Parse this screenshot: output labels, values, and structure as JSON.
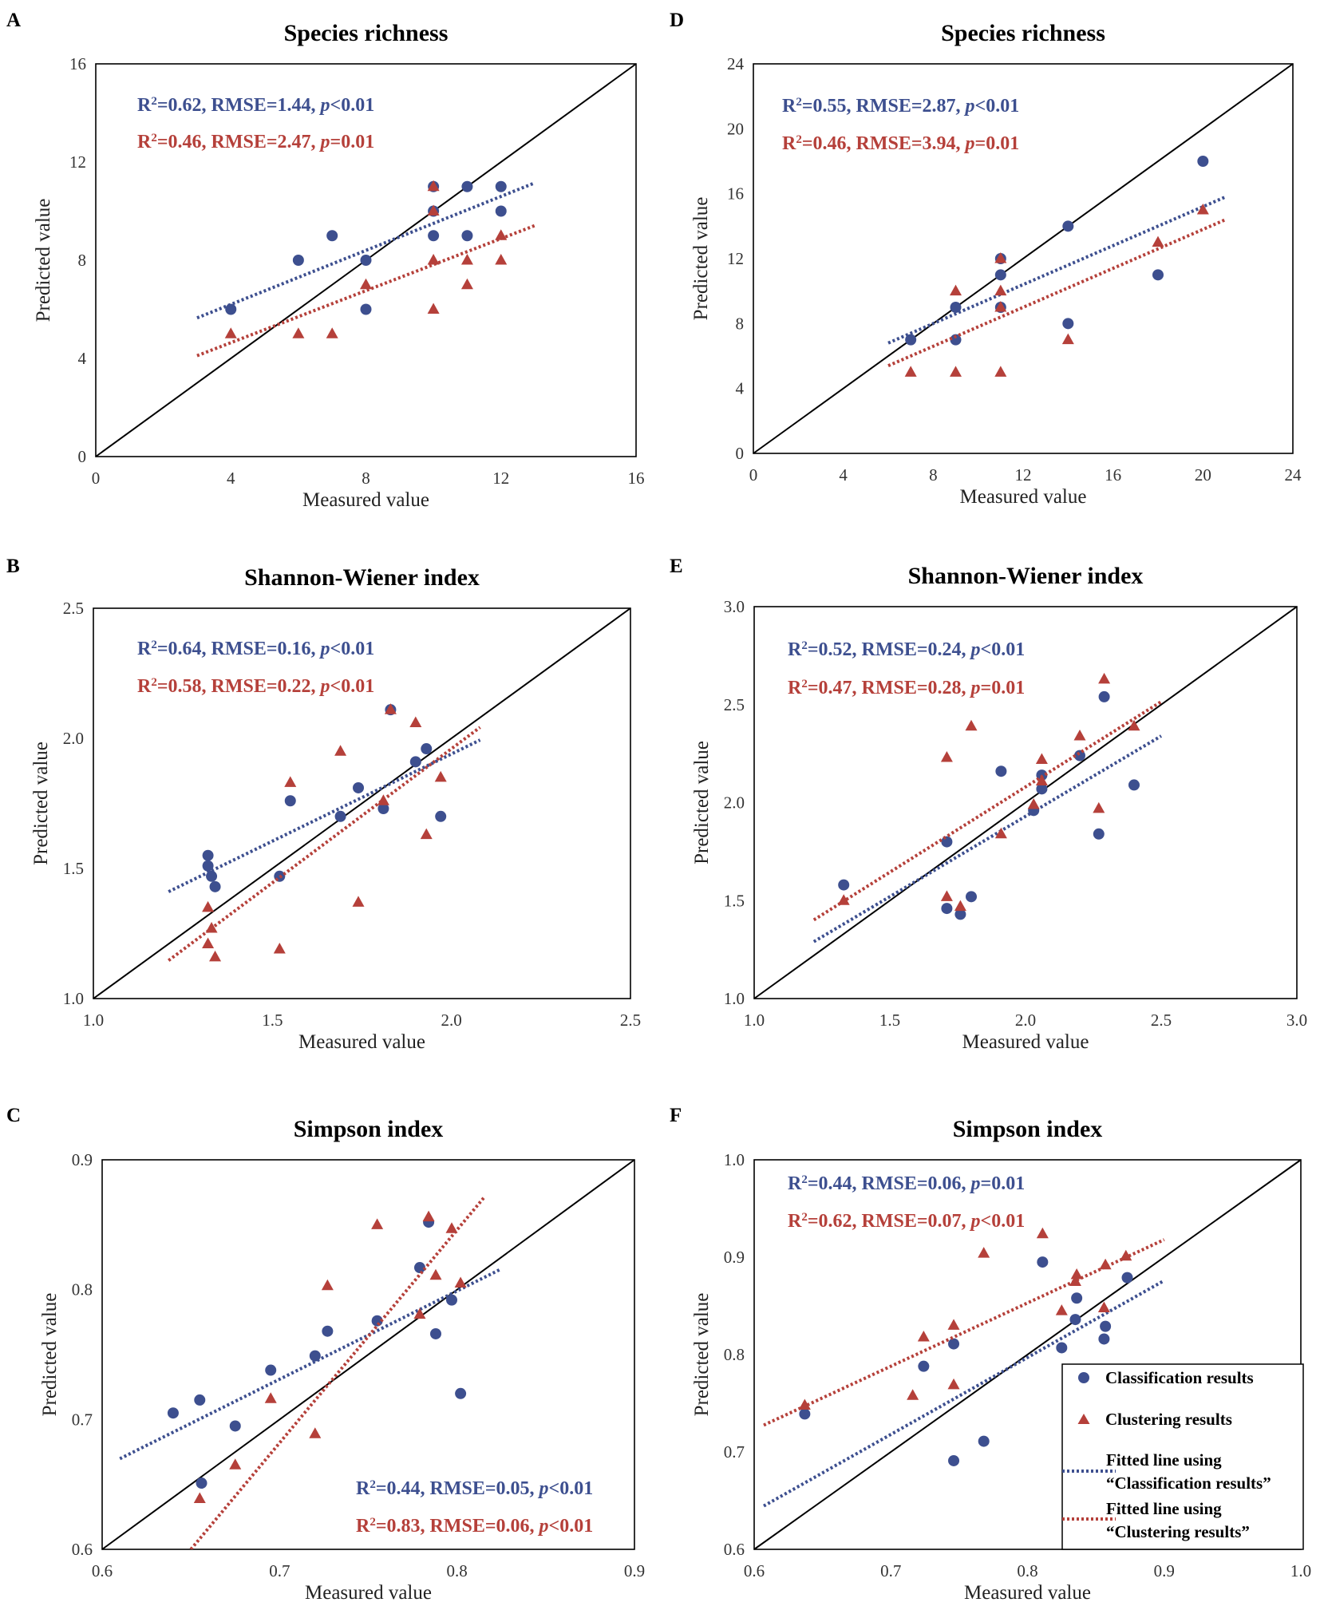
{
  "colors": {
    "classification": "#3d4f8f",
    "clustering": "#b5403a",
    "axis": "#000000"
  },
  "axis_labels": {
    "x": "Measured value",
    "y": "Predicted value"
  },
  "legend": {
    "classification": "Classification results",
    "clustering": "Clustering results",
    "fit_class_line1": "Fitted line using",
    "fit_class_line2": "“Classification results”",
    "fit_clust_line1": "Fitted line using",
    "fit_clust_line2": "“Clustering  results”"
  },
  "chart_data": [
    {
      "panel": "A",
      "type": "scatter",
      "title": "Species richness",
      "xlabel": "Measured value",
      "ylabel": "Predicted value",
      "xlim": [
        0,
        16
      ],
      "ylim": [
        0,
        16
      ],
      "decimals": 0,
      "xticks": [
        0,
        4,
        8,
        12,
        16
      ],
      "yticks": [
        0,
        4,
        8,
        12,
        16
      ],
      "series": [
        {
          "name": "Classification results",
          "marker": "circle",
          "x": [
            4,
            6,
            7,
            8,
            8,
            10,
            10,
            10,
            11,
            11,
            12,
            12
          ],
          "y": [
            6,
            8,
            9,
            8,
            6,
            11,
            10,
            9,
            11,
            9,
            11,
            10
          ],
          "fit": {
            "x0": 3,
            "x1": 13,
            "slope": 0.55,
            "intercept": 4.0
          }
        },
        {
          "name": "Clustering results",
          "marker": "triangle",
          "x": [
            4,
            6,
            7,
            8,
            10,
            10,
            10,
            10,
            11,
            11,
            12,
            12
          ],
          "y": [
            5,
            5,
            5,
            7,
            11,
            10,
            8,
            6,
            8,
            7,
            9,
            8
          ],
          "fit": {
            "x0": 3,
            "x1": 13,
            "slope": 0.53,
            "intercept": 2.52
          }
        }
      ],
      "stats": [
        {
          "r2": "0.62",
          "rmse": "1.44",
          "p_op": "<",
          "p": "0.01"
        },
        {
          "r2": "0.46",
          "rmse": "2.47",
          "p_op": "=",
          "p": "0.01"
        }
      ]
    },
    {
      "panel": "B",
      "type": "scatter",
      "title": "Shannon-Wiener index",
      "xlabel": "Measured value",
      "ylabel": "Predicted value",
      "xlim": [
        1.0,
        2.5
      ],
      "ylim": [
        1.0,
        2.5
      ],
      "decimals": 1,
      "xticks": [
        1.0,
        1.5,
        2.0,
        2.5
      ],
      "yticks": [
        1.0,
        1.5,
        2.0,
        2.5
      ],
      "series": [
        {
          "name": "Classification results",
          "marker": "circle",
          "x": [
            1.32,
            1.32,
            1.33,
            1.34,
            1.52,
            1.55,
            1.69,
            1.74,
            1.81,
            1.83,
            1.9,
            1.93,
            1.97
          ],
          "y": [
            1.55,
            1.51,
            1.47,
            1.43,
            1.47,
            1.76,
            1.7,
            1.81,
            1.73,
            2.11,
            1.91,
            1.96,
            1.7
          ],
          "fit": {
            "x0": 1.21,
            "x1": 2.08,
            "slope": 0.67,
            "intercept": 0.6
          }
        },
        {
          "name": "Clustering results",
          "marker": "triangle",
          "x": [
            1.32,
            1.32,
            1.33,
            1.34,
            1.52,
            1.55,
            1.69,
            1.74,
            1.81,
            1.83,
            1.9,
            1.93,
            1.97
          ],
          "y": [
            1.35,
            1.21,
            1.27,
            1.16,
            1.19,
            1.83,
            1.95,
            1.37,
            1.76,
            2.11,
            2.06,
            1.63,
            1.85
          ],
          "fit": {
            "x0": 1.21,
            "x1": 2.08,
            "slope": 1.03,
            "intercept": -0.1
          }
        }
      ],
      "stats": [
        {
          "r2": "0.64",
          "rmse": "0.16",
          "p_op": "<",
          "p": "0.01"
        },
        {
          "r2": "0.58",
          "rmse": "0.22",
          "p_op": "<",
          "p": "0.01"
        }
      ]
    },
    {
      "panel": "C",
      "type": "scatter",
      "title": "Simpson index",
      "xlabel": "Measured value",
      "ylabel": "Predicted value",
      "xlim": [
        0.6,
        0.9
      ],
      "ylim": [
        0.6,
        0.9
      ],
      "decimals": 1,
      "xticks": [
        0.6,
        0.7,
        0.8,
        0.9
      ],
      "yticks": [
        0.6,
        0.7,
        0.8,
        0.9
      ],
      "series": [
        {
          "name": "Classification results",
          "marker": "circle",
          "x": [
            0.64,
            0.655,
            0.656,
            0.675,
            0.695,
            0.72,
            0.727,
            0.755,
            0.779,
            0.784,
            0.788,
            0.797,
            0.802
          ],
          "y": [
            0.705,
            0.715,
            0.651,
            0.695,
            0.738,
            0.749,
            0.768,
            0.776,
            0.817,
            0.852,
            0.766,
            0.792,
            0.72
          ],
          "fit": {
            "x0": 0.61,
            "x1": 0.825,
            "slope": 0.68,
            "intercept": 0.255
          }
        },
        {
          "name": "Clustering results",
          "marker": "triangle",
          "x": [
            0.655,
            0.675,
            0.695,
            0.72,
            0.727,
            0.755,
            0.779,
            0.784,
            0.788,
            0.797,
            0.802
          ],
          "y": [
            0.639,
            0.665,
            0.716,
            0.689,
            0.803,
            0.85,
            0.781,
            0.856,
            0.811,
            0.847,
            0.805
          ],
          "fit": {
            "x0": 0.65,
            "x1": 0.815,
            "slope": 1.64,
            "intercept": -0.466
          }
        }
      ],
      "stats": [
        {
          "r2": "0.44",
          "rmse": "0.05",
          "p_op": "<",
          "p": "0.01"
        },
        {
          "r2": "0.83",
          "rmse": "0.06",
          "p_op": "<",
          "p": "0.01"
        }
      ]
    },
    {
      "panel": "D",
      "type": "scatter",
      "title": "Species richness",
      "xlabel": "Measured value",
      "ylabel": "Predicted value",
      "xlim": [
        0,
        24
      ],
      "ylim": [
        0,
        24
      ],
      "decimals": 0,
      "xticks": [
        0,
        4,
        8,
        12,
        16,
        20,
        24
      ],
      "yticks": [
        0,
        4,
        8,
        12,
        16,
        20,
        24
      ],
      "series": [
        {
          "name": "Classification results",
          "marker": "circle",
          "x": [
            7,
            9,
            9,
            11,
            11,
            11,
            14,
            14,
            18,
            20
          ],
          "y": [
            7,
            9,
            7,
            12,
            11,
            9,
            14,
            8,
            11,
            18
          ],
          "fit": {
            "x0": 6,
            "x1": 21,
            "slope": 0.6,
            "intercept": 3.2
          }
        },
        {
          "name": "Clustering results",
          "marker": "triangle",
          "x": [
            7,
            9,
            9,
            11,
            11,
            11,
            11,
            14,
            18,
            20
          ],
          "y": [
            5,
            10,
            5,
            12,
            10,
            9,
            5,
            7,
            13,
            15
          ],
          "fit": {
            "x0": 6,
            "x1": 21,
            "slope": 0.6,
            "intercept": 1.8
          }
        }
      ],
      "stats": [
        {
          "r2": "0.55",
          "rmse": "2.87",
          "p_op": "<",
          "p": "0.01"
        },
        {
          "r2": "0.46",
          "rmse": "3.94",
          "p_op": "=",
          "p": "0.01"
        }
      ]
    },
    {
      "panel": "E",
      "type": "scatter",
      "title": "Shannon-Wiener index",
      "xlabel": "Measured value",
      "ylabel": "Predicted value",
      "xlim": [
        1.0,
        3.0
      ],
      "ylim": [
        1.0,
        3.0
      ],
      "decimals": 1,
      "xticks": [
        1.0,
        1.5,
        2.0,
        2.5,
        3.0
      ],
      "yticks": [
        1.0,
        1.5,
        2.0,
        2.5,
        3.0
      ],
      "series": [
        {
          "name": "Classification results",
          "marker": "circle",
          "x": [
            1.33,
            1.71,
            1.71,
            1.76,
            1.8,
            1.91,
            2.03,
            2.06,
            2.06,
            2.2,
            2.27,
            2.29,
            2.4
          ],
          "y": [
            1.58,
            1.8,
            1.46,
            1.43,
            1.52,
            2.16,
            1.96,
            2.14,
            2.07,
            2.24,
            1.84,
            2.54,
            2.09
          ],
          "fit": {
            "x0": 1.22,
            "x1": 2.5,
            "slope": 0.82,
            "intercept": 0.29
          }
        },
        {
          "name": "Clustering results",
          "marker": "triangle",
          "x": [
            1.33,
            1.71,
            1.71,
            1.76,
            1.8,
            1.91,
            2.03,
            2.06,
            2.06,
            2.2,
            2.27,
            2.29,
            2.4
          ],
          "y": [
            1.5,
            2.23,
            1.52,
            1.47,
            2.39,
            1.84,
            1.99,
            2.22,
            2.11,
            2.34,
            1.97,
            2.63,
            2.39
          ],
          "fit": {
            "x0": 1.22,
            "x1": 2.5,
            "slope": 0.87,
            "intercept": 0.34
          }
        }
      ],
      "stats": [
        {
          "r2": "0.52",
          "rmse": "0.24",
          "p_op": "<",
          "p": "0.01"
        },
        {
          "r2": "0.47",
          "rmse": "0.28",
          "p_op": "=",
          "p": "0.01"
        }
      ]
    },
    {
      "panel": "F",
      "type": "scatter",
      "title": "Simpson index",
      "xlabel": "Measured value",
      "ylabel": "Predicted value",
      "xlim": [
        0.6,
        1.0
      ],
      "ylim": [
        0.6,
        1.0
      ],
      "decimals": 1,
      "xticks": [
        0.6,
        0.7,
        0.8,
        0.9,
        1.0
      ],
      "yticks": [
        0.6,
        0.7,
        0.8,
        0.9,
        1.0
      ],
      "series": [
        {
          "name": "Classification results",
          "marker": "circle",
          "x": [
            0.637,
            0.724,
            0.746,
            0.746,
            0.768,
            0.811,
            0.825,
            0.835,
            0.836,
            0.856,
            0.857,
            0.873
          ],
          "y": [
            0.739,
            0.788,
            0.811,
            0.691,
            0.711,
            0.895,
            0.807,
            0.836,
            0.858,
            0.816,
            0.829,
            0.879
          ],
          "fit": {
            "x0": 0.607,
            "x1": 0.9,
            "slope": 0.79,
            "intercept": 0.165
          }
        },
        {
          "name": "Clustering results",
          "marker": "triangle",
          "x": [
            0.637,
            0.716,
            0.724,
            0.746,
            0.746,
            0.768,
            0.811,
            0.825,
            0.835,
            0.836,
            0.856,
            0.857,
            0.872
          ],
          "y": [
            0.748,
            0.758,
            0.818,
            0.83,
            0.769,
            0.904,
            0.924,
            0.845,
            0.875,
            0.882,
            0.848,
            0.892,
            0.901
          ],
          "fit": {
            "x0": 0.607,
            "x1": 0.9,
            "slope": 0.65,
            "intercept": 0.333
          }
        }
      ],
      "stats": [
        {
          "r2": "0.44",
          "rmse": "0.06",
          "p_op": "=",
          "p": "0.01"
        },
        {
          "r2": "0.62",
          "rmse": "0.07",
          "p_op": "<",
          "p": "0.01"
        }
      ]
    }
  ]
}
